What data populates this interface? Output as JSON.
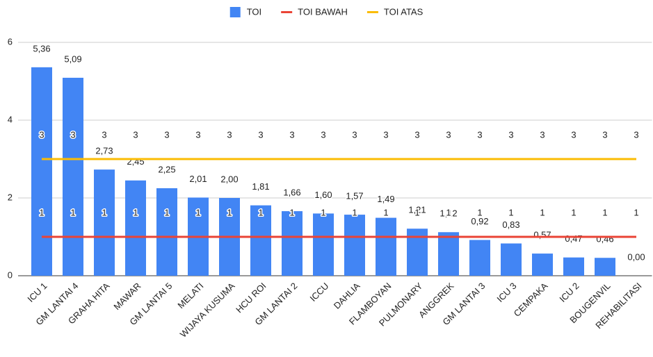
{
  "chart_data": {
    "type": "bar",
    "categories": [
      "ICU 1",
      "GM LANTAI 4",
      "GRAHA HITA",
      "MAWAR",
      "GM LANTAI 5",
      "MELATI",
      "WIJAYA KUSUMA",
      "HCU ROI",
      "GM LANTAI 2",
      "ICCU",
      "DAHLIA",
      "FLAMBOYAN",
      "PULMONARY",
      "ANGGREK",
      "GM LANTAI 3",
      "ICU 3",
      "CEMPAKA",
      "ICU 2",
      "BOUGENVIL",
      "REHABILITASI"
    ],
    "series": [
      {
        "name": "TOI",
        "type": "bar",
        "color": "#4285f4",
        "values": [
          5.36,
          5.09,
          2.73,
          2.45,
          2.25,
          2.01,
          2.0,
          1.81,
          1.66,
          1.6,
          1.57,
          1.49,
          1.21,
          1.12,
          0.92,
          0.83,
          0.57,
          0.47,
          0.46,
          0.0
        ],
        "value_labels": [
          "5,36",
          "5,09",
          "2,73",
          "2,45",
          "2,25",
          "2,01",
          "2,00",
          "1,81",
          "1,66",
          "1,60",
          "1,57",
          "1,49",
          "1,21",
          "1,12",
          "0,92",
          "0,83",
          "0,57",
          "0,47",
          "0,46",
          "0,00"
        ]
      },
      {
        "name": "TOI BAWAH",
        "type": "line",
        "color": "#ea4335",
        "values": [
          1,
          1,
          1,
          1,
          1,
          1,
          1,
          1,
          1,
          1,
          1,
          1,
          1,
          1,
          1,
          1,
          1,
          1,
          1,
          1
        ]
      },
      {
        "name": "TOI ATAS",
        "type": "line",
        "color": "#fbbc04",
        "values": [
          3,
          3,
          3,
          3,
          3,
          3,
          3,
          3,
          3,
          3,
          3,
          3,
          3,
          3,
          3,
          3,
          3,
          3,
          3,
          3
        ]
      }
    ],
    "ylim": [
      0,
      6
    ],
    "yticks": [
      0,
      2,
      4,
      6
    ],
    "grid": true,
    "legend": "top"
  }
}
